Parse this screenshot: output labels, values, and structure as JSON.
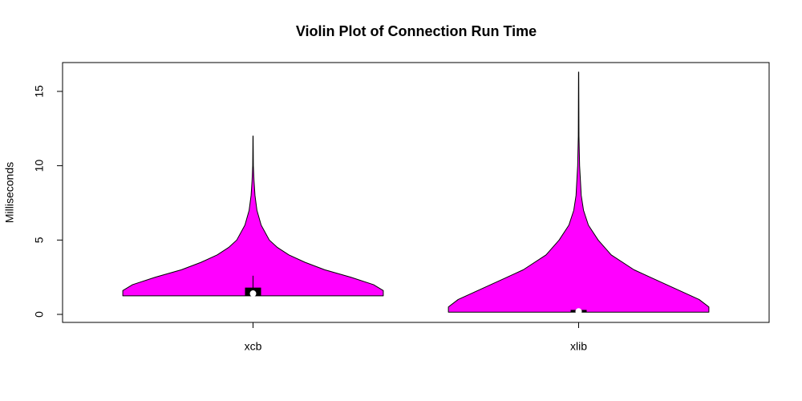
{
  "chart_data": {
    "type": "violin",
    "title": "Violin Plot of Connection Run Time",
    "y_label": "Milliseconds",
    "categories": [
      "xcb",
      "xlib"
    ],
    "color": "#ff00ff",
    "xlim": [
      0.415,
      2.585
    ],
    "ylim": [
      -0.54,
      16.94
    ],
    "yticks": [
      0,
      5,
      10,
      15
    ],
    "violins": [
      {
        "y": [
          1.25,
          1.6,
          2.0,
          2.5,
          3.0,
          3.5,
          4.0,
          4.5,
          5.0,
          6.0,
          7.0,
          8.0,
          9.0,
          10.0,
          12.0
        ],
        "width": [
          0.4,
          0.4,
          0.37,
          0.3,
          0.22,
          0.16,
          0.11,
          0.075,
          0.05,
          0.025,
          0.012,
          0.006,
          0.003,
          0.001,
          0.0003
        ],
        "q1": 1.25,
        "median": 1.4,
        "q3": 1.8,
        "whisker_low": 1.25,
        "whisker_high": 2.6
      },
      {
        "y": [
          0.15,
          0.5,
          1.0,
          1.5,
          2.0,
          2.5,
          3.0,
          4.0,
          5.0,
          6.0,
          7.0,
          8.0,
          10.0,
          12.0,
          16.3
        ],
        "width": [
          0.4,
          0.4,
          0.37,
          0.32,
          0.27,
          0.22,
          0.17,
          0.1,
          0.06,
          0.03,
          0.015,
          0.008,
          0.003,
          0.001,
          0.0003
        ],
        "q1": 0.15,
        "median": 0.2,
        "q3": 0.3,
        "whisker_low": 0.15,
        "whisker_high": 0.35
      }
    ]
  }
}
